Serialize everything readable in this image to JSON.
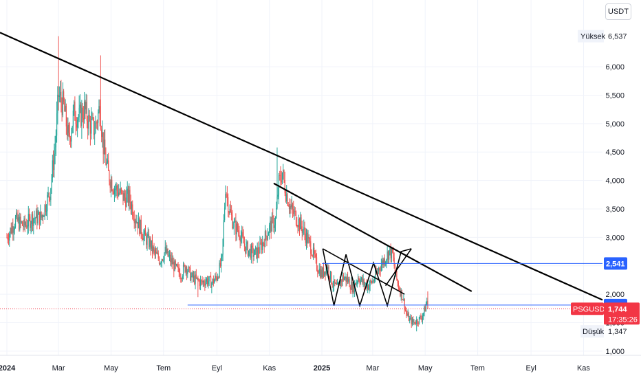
{
  "currency_button": "USDT",
  "colors": {
    "up": "#26a69a",
    "down": "#ef5350",
    "trend": "#000000",
    "hline": "#2962ff",
    "price_tag": "#f23645",
    "level_tag": "#2962ff",
    "grid": "#f0f3fa"
  },
  "high_label": {
    "label": "Yüksek",
    "value": "6,537"
  },
  "low_label": {
    "label": "Düşük",
    "value": "1,347"
  },
  "symbol_tag": {
    "symbol": "PSGUSDT",
    "price": "1,744",
    "countdown": "17:35:26"
  },
  "level_tags": [
    "2,541",
    "1,810"
  ],
  "chart_data": {
    "type": "candlestick",
    "yaxis": {
      "ticks": [
        {
          "v": 6.0,
          "label": "6,000"
        },
        {
          "v": 5.5,
          "label": "5,500"
        },
        {
          "v": 5.0,
          "label": "5,000"
        },
        {
          "v": 4.5,
          "label": "4,500"
        },
        {
          "v": 4.0,
          "label": "4,000"
        },
        {
          "v": 3.5,
          "label": "3,500"
        },
        {
          "v": 3.0,
          "label": "3,000"
        },
        {
          "v": 2.5,
          "label": "2,500"
        },
        {
          "v": 2.0,
          "label": "2,000"
        },
        {
          "v": 1.5,
          "label": "1,500"
        },
        {
          "v": 1.0,
          "label": "1,000"
        }
      ],
      "range": [
        0.95,
        6.75
      ]
    },
    "xaxis": {
      "ticks": [
        {
          "t": 0,
          "label": "2024",
          "bold": true
        },
        {
          "t": 60,
          "label": "Mar"
        },
        {
          "t": 121,
          "label": "May"
        },
        {
          "t": 182,
          "label": "Tem"
        },
        {
          "t": 244,
          "label": "Eyl"
        },
        {
          "t": 305,
          "label": "Kas"
        },
        {
          "t": 366,
          "label": "2025",
          "bold": true
        },
        {
          "t": 425,
          "label": "Mar"
        },
        {
          "t": 486,
          "label": "May"
        },
        {
          "t": 547,
          "label": "Tem"
        },
        {
          "t": 609,
          "label": "Eyl"
        },
        {
          "t": 670,
          "label": "Kas"
        }
      ],
      "range": [
        -8,
        692
      ]
    },
    "price_path": [
      [
        0,
        3.0
      ],
      [
        10,
        3.3
      ],
      [
        20,
        3.2
      ],
      [
        30,
        3.35
      ],
      [
        40,
        3.35
      ],
      [
        50,
        3.8
      ],
      [
        56,
        4.6
      ],
      [
        60,
        5.5
      ],
      [
        66,
        5.3
      ],
      [
        72,
        4.7
      ],
      [
        78,
        5.2
      ],
      [
        84,
        5.1
      ],
      [
        90,
        5.25
      ],
      [
        96,
        5.0
      ],
      [
        102,
        4.9
      ],
      [
        108,
        5.3
      ],
      [
        112,
        4.6
      ],
      [
        118,
        4.1
      ],
      [
        124,
        3.9
      ],
      [
        130,
        3.8
      ],
      [
        136,
        3.7
      ],
      [
        142,
        3.7
      ],
      [
        148,
        3.4
      ],
      [
        154,
        3.2
      ],
      [
        160,
        3.0
      ],
      [
        166,
        2.9
      ],
      [
        172,
        2.7
      ],
      [
        178,
        2.6
      ],
      [
        184,
        2.75
      ],
      [
        190,
        2.6
      ],
      [
        196,
        2.45
      ],
      [
        202,
        2.35
      ],
      [
        208,
        2.5
      ],
      [
        214,
        2.3
      ],
      [
        220,
        2.25
      ],
      [
        226,
        2.2
      ],
      [
        232,
        2.25
      ],
      [
        238,
        2.2
      ],
      [
        244,
        2.3
      ],
      [
        250,
        2.6
      ],
      [
        254,
        3.9
      ],
      [
        258,
        3.5
      ],
      [
        264,
        3.2
      ],
      [
        270,
        3.1
      ],
      [
        276,
        2.85
      ],
      [
        282,
        2.75
      ],
      [
        288,
        2.7
      ],
      [
        294,
        2.8
      ],
      [
        300,
        3.0
      ],
      [
        306,
        3.2
      ],
      [
        312,
        3.3
      ],
      [
        316,
        3.95
      ],
      [
        320,
        4.15
      ],
      [
        324,
        3.8
      ],
      [
        330,
        3.5
      ],
      [
        336,
        3.35
      ],
      [
        342,
        3.2
      ],
      [
        348,
        3.0
      ],
      [
        354,
        2.8
      ],
      [
        360,
        2.5
      ],
      [
        366,
        2.35
      ],
      [
        372,
        2.5
      ],
      [
        378,
        2.2
      ],
      [
        384,
        2.1
      ],
      [
        390,
        2.3
      ],
      [
        396,
        2.25
      ],
      [
        402,
        2.1
      ],
      [
        408,
        2.3
      ],
      [
        414,
        2.2
      ],
      [
        420,
        2.15
      ],
      [
        426,
        2.25
      ],
      [
        432,
        2.45
      ],
      [
        438,
        2.6
      ],
      [
        444,
        2.75
      ],
      [
        448,
        2.7
      ],
      [
        452,
        2.3
      ],
      [
        456,
        2.1
      ],
      [
        460,
        1.95
      ],
      [
        464,
        1.65
      ],
      [
        468,
        1.55
      ],
      [
        472,
        1.5
      ],
      [
        478,
        1.55
      ],
      [
        482,
        1.6
      ],
      [
        486,
        1.75
      ],
      [
        489,
        1.95
      ]
    ],
    "highs": [
      {
        "t": 60,
        "v": 6.537
      },
      {
        "t": 109,
        "v": 6.2
      },
      {
        "t": 314,
        "v": 4.58
      },
      {
        "t": 318,
        "v": 4.25
      }
    ],
    "lows": [
      {
        "t": 476,
        "v": 1.347
      },
      {
        "t": 222,
        "v": 1.95
      }
    ],
    "trendlines": [
      [
        [
          -8,
          6.6
        ],
        [
          692,
          1.9
        ]
      ],
      [
        [
          310,
          3.95
        ],
        [
          540,
          2.05
        ]
      ]
    ],
    "zigzag": [
      [
        367,
        2.8
      ],
      [
        380,
        1.8
      ],
      [
        394,
        2.7
      ],
      [
        410,
        1.8
      ],
      [
        426,
        2.55
      ],
      [
        442,
        1.8
      ],
      [
        458,
        2.75
      ],
      [
        470,
        2.8
      ]
    ],
    "zigzag_lines": [
      [
        [
          367,
          2.8
        ],
        [
          462,
          2.0
        ]
      ],
      [
        [
          440,
          2.15
        ],
        [
          470,
          2.8
        ]
      ]
    ],
    "hlines": [
      {
        "v": 2.541,
        "from": 366,
        "to": 692,
        "label": "2,541"
      },
      {
        "v": 1.81,
        "from": 210,
        "to": 692,
        "label": "1,810"
      }
    ],
    "current_price": {
      "v": 1.744,
      "label": "1,744"
    },
    "high": {
      "v": 6.537,
      "label": "6,537"
    },
    "low": {
      "v": 1.347,
      "label": "1,347"
    }
  }
}
